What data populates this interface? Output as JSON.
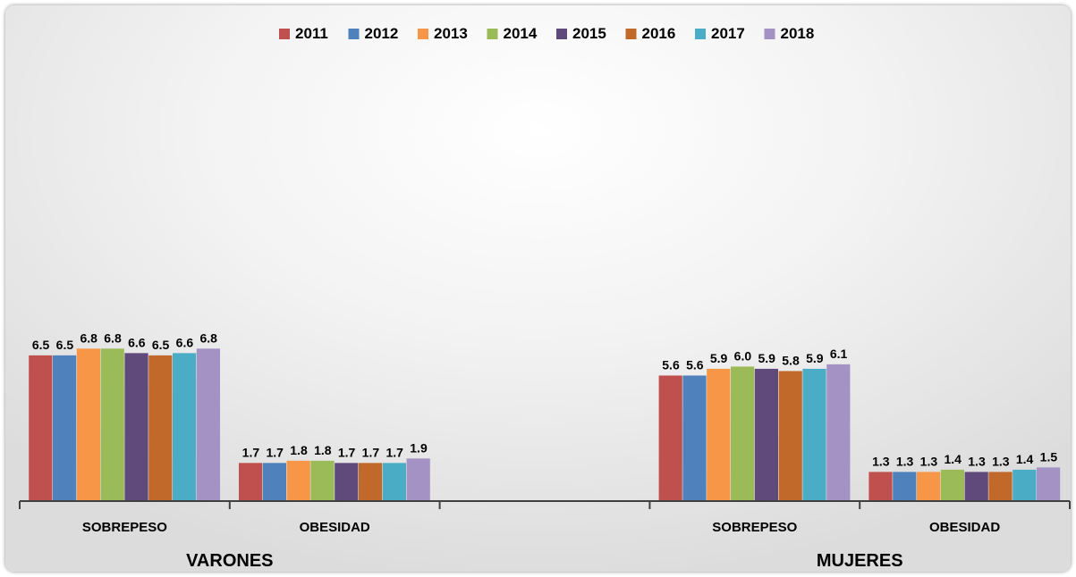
{
  "chart_data": {
    "type": "bar",
    "title": "",
    "xlabel": "",
    "ylabel": "",
    "ylim": [
      0,
      20
    ],
    "grid": false,
    "legend_position": "top-center",
    "groups": [
      "VARONES",
      "MUJERES"
    ],
    "categories": [
      "SOBREPESO",
      "OBESIDAD",
      "",
      "SOBREPESO",
      "OBESIDAD"
    ],
    "series": [
      {
        "name": "2011",
        "color": "#c0504d",
        "values": [
          6.5,
          1.7,
          null,
          5.6,
          1.3
        ],
        "labels": [
          "6.5",
          "1.7",
          null,
          "5.6",
          "1.3"
        ]
      },
      {
        "name": "2012",
        "color": "#4f81bd",
        "values": [
          6.5,
          1.7,
          null,
          5.6,
          1.3
        ],
        "labels": [
          "6.5",
          "1.7",
          null,
          "5.6",
          "1.3"
        ]
      },
      {
        "name": "2013",
        "color": "#f79646",
        "values": [
          6.8,
          1.8,
          null,
          5.9,
          1.3
        ],
        "labels": [
          "6.8",
          "1.8",
          null,
          "5.9",
          "1.3"
        ]
      },
      {
        "name": "2014",
        "color": "#9bbb59",
        "values": [
          6.8,
          1.8,
          null,
          6.0,
          1.4
        ],
        "labels": [
          "6.8",
          "1.8",
          null,
          "6.0",
          "1.4"
        ]
      },
      {
        "name": "2015",
        "color": "#604a7b",
        "values": [
          6.6,
          1.7,
          null,
          5.9,
          1.3
        ],
        "labels": [
          "6.6",
          "1.7",
          null,
          "5.9",
          "1.3"
        ]
      },
      {
        "name": "2016",
        "color": "#c0692a",
        "values": [
          6.5,
          1.7,
          null,
          5.8,
          1.3
        ],
        "labels": [
          "6.5",
          "1.7",
          null,
          "5.8",
          "1.3"
        ]
      },
      {
        "name": "2017",
        "color": "#4bacc6",
        "values": [
          6.6,
          1.7,
          null,
          5.9,
          1.4
        ],
        "labels": [
          "6.6",
          "1.7",
          null,
          "5.9",
          "1.4"
        ]
      },
      {
        "name": "2018",
        "color": "#a492c4",
        "values": [
          6.8,
          1.9,
          null,
          6.1,
          1.5
        ],
        "labels": [
          "6.8",
          "1.9",
          null,
          "6.1",
          "1.5"
        ]
      }
    ]
  }
}
